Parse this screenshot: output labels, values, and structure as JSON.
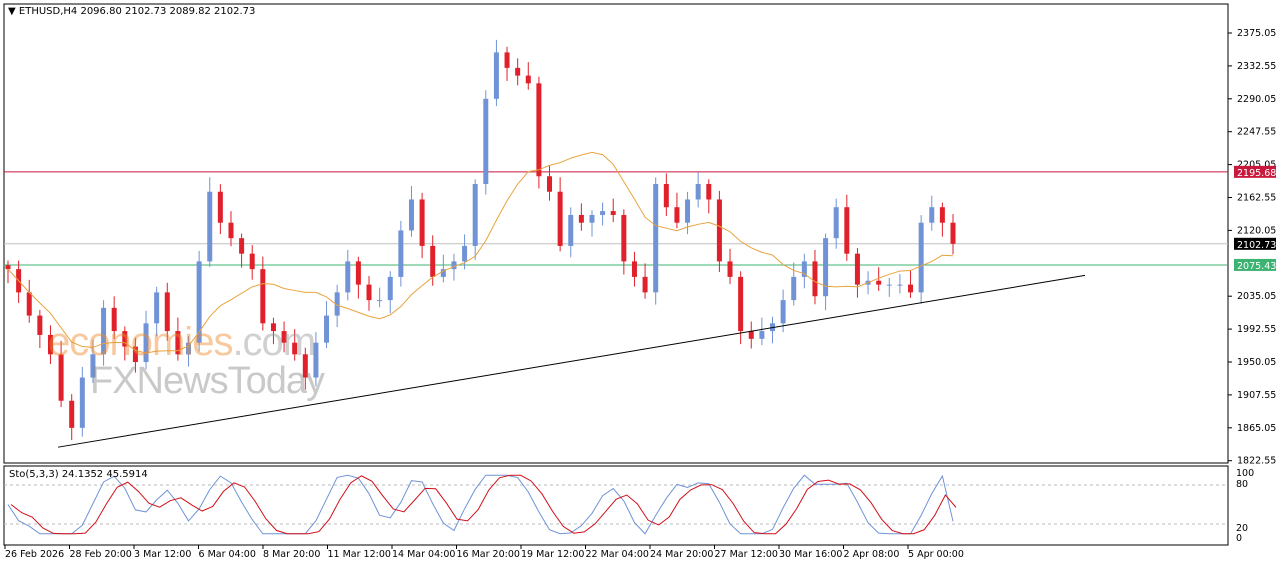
{
  "header": {
    "symbol": "ETHUSD,H4",
    "ohlc": "2096.80 2102.73 2089.82 2102.73"
  },
  "stochastic": {
    "label": "Sto(5,3,3) 24.1352 45.5914",
    "levels": [
      80,
      20
    ],
    "scale_labels": [
      "100",
      "80",
      "20",
      "0"
    ]
  },
  "watermark": {
    "brand1": "economies",
    "brand1_suffix": ".com",
    "brand2": "FXNewsToday"
  },
  "colors": {
    "bull": "#6f93d6",
    "bear": "#e0202a",
    "ma": "#e8a33c",
    "resistance": "#c8193c",
    "support": "#3cb371",
    "current": "#000000",
    "sto_main": "#6f93d6",
    "sto_signal": "#d0101a"
  },
  "chart_data": {
    "type": "candlestick",
    "symbol": "ETHUSD",
    "timeframe": "H4",
    "ylim": [
      1822.55,
      2400
    ],
    "y_ticks": [
      2375.05,
      2332.55,
      2290.05,
      2247.55,
      2205.05,
      2162.55,
      2120.05,
      2035.05,
      1992.55,
      1950.05,
      1907.55,
      1865.05,
      1822.55
    ],
    "x_tick_labels": [
      "26 Feb 2026",
      "28 Feb 20:00",
      "3 Mar 12:00",
      "6 Mar 04:00",
      "8 Mar 20:00",
      "11 Mar 12:00",
      "14 Mar 04:00",
      "16 Mar 20:00",
      "19 Mar 12:00",
      "22 Mar 04:00",
      "24 Mar 20:00",
      "27 Mar 12:00",
      "30 Mar 16:00",
      "2 Apr 08:00",
      "5 Apr 00:00"
    ],
    "close": [
      2070,
      2040,
      2010,
      1985,
      1960,
      1900,
      1865,
      1930,
      1960,
      2020,
      1990,
      1970,
      1950,
      2000,
      2040,
      1990,
      1960,
      1975,
      2080,
      2170,
      2130,
      2110,
      2090,
      2070,
      2000,
      1990,
      1975,
      1960,
      1930,
      1975,
      2010,
      2040,
      2080,
      2050,
      2030,
      2030,
      2060,
      2120,
      2160,
      2100,
      2060,
      2070,
      2080,
      2100,
      2180,
      2290,
      2350,
      2330,
      2320,
      2310,
      2190,
      2170,
      2100,
      2140,
      2130,
      2140,
      2145,
      2140,
      2080,
      2060,
      2040,
      2180,
      2150,
      2130,
      2160,
      2180,
      2160,
      2080,
      2060,
      1990,
      1980,
      1990,
      2000,
      2030,
      2060,
      2080,
      2035,
      2110,
      2150,
      2090,
      2050,
      2055,
      2050,
      2050,
      2050,
      2040,
      2130,
      2150,
      2130,
      2102.73
    ],
    "horizontal_lines": [
      {
        "price": 2195.68,
        "label": "2195.68",
        "role": "resistance"
      },
      {
        "price": 2102.73,
        "label": "2102.73",
        "role": "current"
      },
      {
        "price": 2075.43,
        "label": "2075.43",
        "role": "support"
      }
    ],
    "trendline": {
      "start_price": 1840,
      "end_price": 2062
    },
    "moving_average": true,
    "stochastic": {
      "k": 24.1352,
      "d": 45.5914
    }
  }
}
